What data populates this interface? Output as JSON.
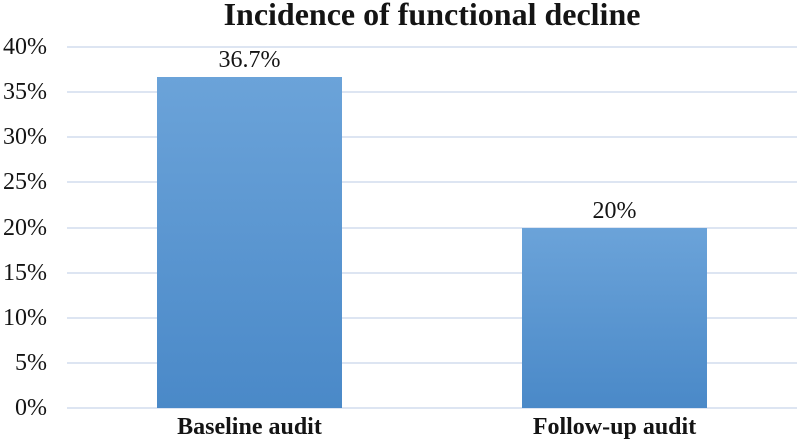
{
  "chart_data": {
    "type": "bar",
    "title": "Incidence of functional decline",
    "categories": [
      "Baseline audit",
      "Follow-up audit"
    ],
    "values": [
      36.7,
      20
    ],
    "data_labels": [
      "36.7%",
      "20%"
    ],
    "xlabel": "",
    "ylabel": "",
    "ylim": [
      0,
      40
    ],
    "y_tick_step": 5,
    "y_tick_labels": [
      "0%",
      "5%",
      "10%",
      "15%",
      "20%",
      "25%",
      "30%",
      "35%",
      "40%"
    ],
    "grid": true,
    "legend": "none",
    "colors": {
      "bar_solid": "#5b9bd5",
      "bar_gradient_top": "#6ba3d9",
      "bar_gradient_bottom": "#4a89c8",
      "gridline": "#dde5f2",
      "text": "#141414",
      "background": "#ffffff"
    }
  }
}
